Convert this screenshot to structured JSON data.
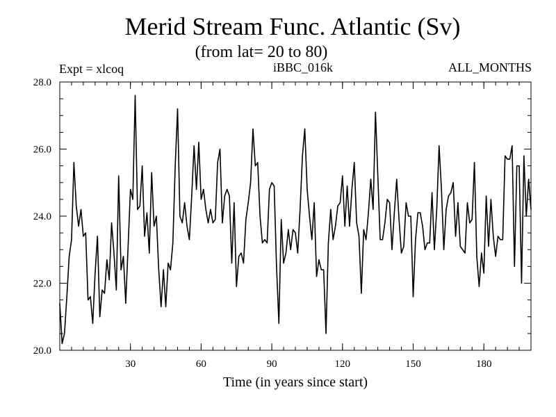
{
  "chart_data": {
    "type": "line",
    "title": "Merid Stream Func. Atlantic (Sv)",
    "subtitle": "(from lat= 20 to 80)",
    "expt_label": "Expt = xlcoq",
    "run_label": "iBBC_016k",
    "period_label": "ALL_MONTHS",
    "xlabel": "Time (in years since start)",
    "ylabel": "",
    "xlim": [
      0,
      200
    ],
    "ylim": [
      20.0,
      28.0
    ],
    "x_ticks": [
      30,
      60,
      90,
      120,
      150,
      180
    ],
    "y_ticks": [
      20.0,
      22.0,
      24.0,
      26.0,
      28.0
    ],
    "x_tick_labels": [
      "30",
      "60",
      "90",
      "120",
      "150",
      "180"
    ],
    "y_tick_labels": [
      "20.0",
      "22.0",
      "24.0",
      "26.0",
      "28.0"
    ],
    "x_minor_step": 5,
    "y_minor_step": 0.5,
    "grid": false,
    "series": [
      {
        "name": "Merid Stream Func. Atlantic",
        "color": "#000000",
        "x": [
          0,
          1,
          2,
          3,
          4,
          5,
          6,
          7,
          8,
          9,
          10,
          11,
          12,
          13,
          14,
          15,
          16,
          17,
          18,
          19,
          20,
          21,
          22,
          23,
          24,
          25,
          26,
          27,
          28,
          29,
          30,
          31,
          32,
          33,
          34,
          35,
          36,
          37,
          38,
          39,
          40,
          41,
          42,
          43,
          44,
          45,
          46,
          47,
          48,
          49,
          50,
          51,
          52,
          53,
          54,
          55,
          56,
          57,
          58,
          59,
          60,
          61,
          62,
          63,
          64,
          65,
          66,
          67,
          68,
          69,
          70,
          71,
          72,
          73,
          74,
          75,
          76,
          77,
          78,
          79,
          80,
          81,
          82,
          83,
          84,
          85,
          86,
          87,
          88,
          89,
          90,
          91,
          92,
          93,
          94,
          95,
          96,
          97,
          98,
          99,
          100,
          101,
          102,
          103,
          104,
          105,
          106,
          107,
          108,
          109,
          110,
          111,
          112,
          113,
          114,
          115,
          116,
          117,
          118,
          119,
          120,
          121,
          122,
          123,
          124,
          125,
          126,
          127,
          128,
          129,
          130,
          131,
          132,
          133,
          134,
          135,
          136,
          137,
          138,
          139,
          140,
          141,
          142,
          143,
          144,
          145,
          146,
          147,
          148,
          149,
          150,
          151,
          152,
          153,
          154,
          155,
          156,
          157,
          158,
          159,
          160,
          161,
          162,
          163,
          164,
          165,
          166,
          167,
          168,
          169,
          170,
          171,
          172,
          173,
          174,
          175,
          176,
          177,
          178,
          179,
          180,
          181,
          182,
          183,
          184,
          185,
          186,
          187,
          188,
          189,
          190,
          191,
          192,
          193,
          194,
          195,
          196,
          197,
          198,
          199,
          200
        ],
        "values": [
          21.4,
          20.2,
          20.5,
          21.6,
          22.8,
          23.3,
          25.6,
          24.3,
          23.7,
          24.2,
          23.4,
          23.5,
          21.5,
          21.6,
          20.8,
          22.3,
          23.4,
          21.0,
          21.8,
          21.7,
          22.7,
          22.1,
          23.8,
          22.9,
          21.8,
          25.2,
          22.4,
          22.8,
          21.4,
          23.1,
          24.8,
          24.5,
          27.6,
          24.2,
          24.3,
          25.5,
          23.4,
          24.1,
          22.9,
          25.3,
          23.7,
          24.0,
          22.4,
          21.3,
          22.4,
          21.3,
          22.6,
          22.4,
          23.2,
          25.5,
          27.2,
          24.0,
          23.8,
          24.4,
          23.7,
          23.3,
          24.6,
          26.1,
          24.8,
          26.2,
          24.5,
          24.8,
          24.2,
          23.8,
          24.2,
          23.8,
          23.9,
          25.6,
          26.0,
          23.8,
          24.6,
          24.8,
          24.6,
          22.6,
          24.4,
          21.9,
          22.8,
          22.9,
          22.6,
          23.9,
          24.4,
          25.0,
          26.6,
          25.5,
          25.6,
          24.0,
          23.2,
          23.3,
          23.2,
          24.8,
          25.0,
          24.9,
          22.5,
          20.8,
          23.9,
          22.6,
          22.9,
          23.6,
          23.0,
          23.6,
          23.5,
          22.9,
          24.2,
          25.8,
          26.6,
          24.8,
          24.0,
          23.3,
          24.4,
          22.2,
          22.7,
          22.4,
          22.4,
          20.5,
          23.2,
          24.2,
          23.3,
          23.7,
          24.3,
          24.4,
          25.2,
          23.7,
          24.9,
          23.7,
          24.8,
          25.6,
          23.8,
          23.4,
          21.7,
          23.6,
          23.3,
          24.1,
          25.1,
          24.2,
          27.1,
          25.2,
          23.3,
          23.3,
          23.8,
          24.5,
          24.4,
          23.0,
          24.1,
          25.1,
          23.9,
          22.9,
          23.1,
          24.4,
          24.0,
          24.0,
          21.6,
          23.3,
          24.1,
          24.1,
          23.7,
          23.0,
          23.2,
          23.2,
          24.7,
          23.0,
          24.2,
          26.1,
          24.8,
          23.0,
          24.2,
          24.6,
          24.7,
          25.0,
          23.4,
          24.4,
          23.1,
          23.0,
          22.9,
          24.4,
          23.8,
          23.9,
          25.6,
          22.8,
          21.9,
          22.9,
          22.3,
          24.6,
          23.1,
          24.5,
          23.4,
          22.8,
          23.4,
          23.3,
          23.3,
          25.8,
          25.7,
          25.7,
          26.1,
          22.5,
          25.5,
          25.5,
          22.0,
          25.8,
          24.0,
          25.1,
          24.2
        ]
      }
    ]
  }
}
